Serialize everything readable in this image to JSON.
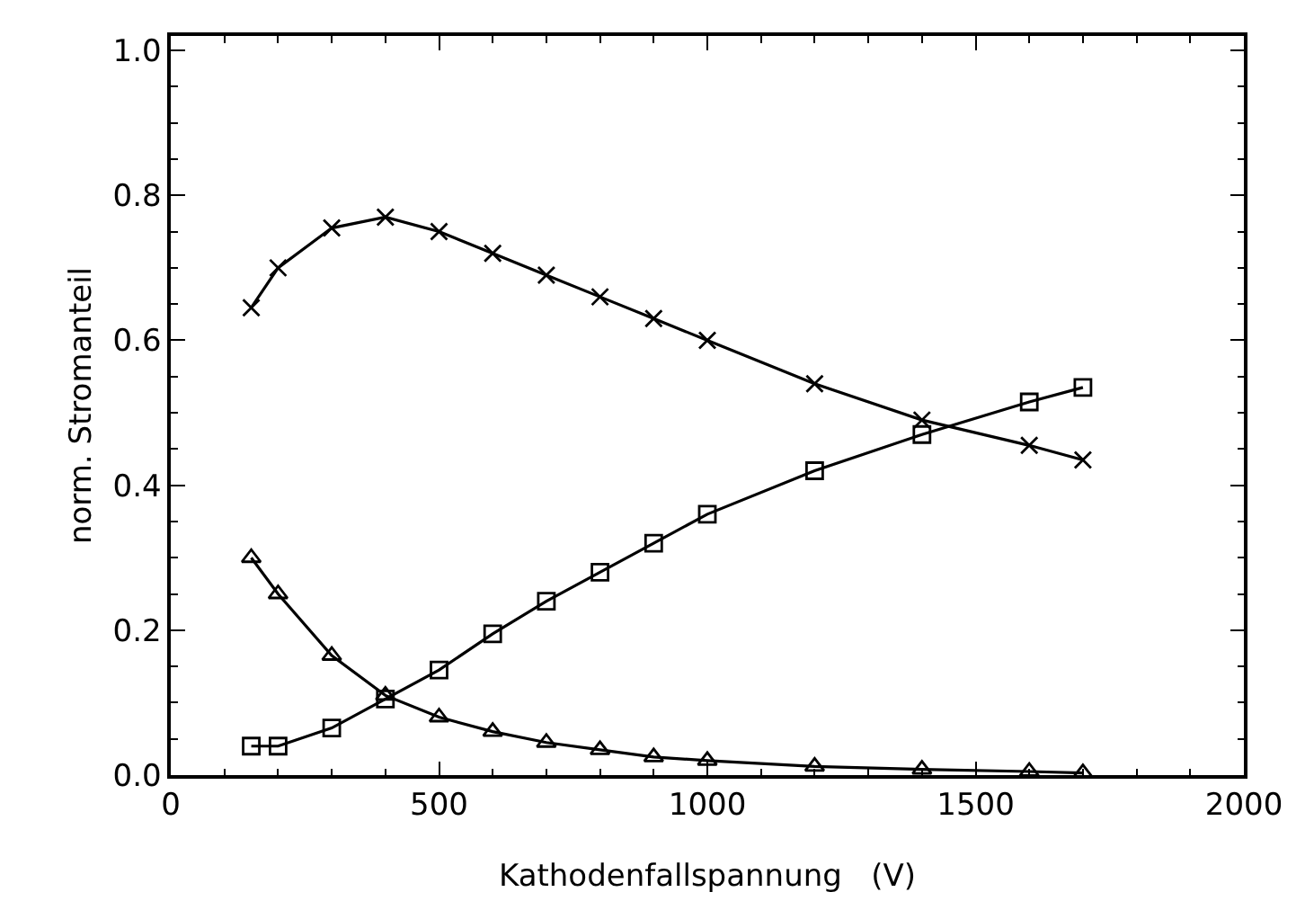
{
  "chart_data": {
    "type": "line",
    "xlabel": "Kathodenfallspannung   (V)",
    "ylabel": "norm. Stromanteil",
    "x": [
      150,
      200,
      300,
      400,
      500,
      600,
      700,
      800,
      900,
      1000,
      1200,
      1400,
      1600,
      1700
    ],
    "series": [
      {
        "color": "#000000",
        "marker": "cross",
        "values": [
          0.645,
          0.7,
          0.755,
          0.77,
          0.75,
          0.72,
          0.69,
          0.66,
          0.63,
          0.6,
          0.54,
          0.49,
          0.455,
          0.435
        ]
      },
      {
        "color": "#000000",
        "marker": "square",
        "values": [
          0.04,
          0.04,
          0.065,
          0.105,
          0.145,
          0.195,
          0.24,
          0.28,
          0.32,
          0.36,
          0.42,
          0.47,
          0.515,
          0.535
        ]
      },
      {
        "color": "#000000",
        "marker": "triangle",
        "values": [
          0.3,
          0.25,
          0.165,
          0.11,
          0.08,
          0.06,
          0.045,
          0.035,
          0.025,
          0.02,
          0.012,
          0.008,
          0.005,
          0.003
        ]
      }
    ],
    "xlim": [
      0,
      2000
    ],
    "xticks": [
      0,
      500,
      1000,
      1500,
      2000
    ],
    "ylim": [
      0,
      1.02
    ],
    "yticks": [
      {
        "value": 0,
        "label": "0.0"
      },
      {
        "value": 0.2,
        "label": "0.2"
      },
      {
        "value": 0.4,
        "label": "0.4"
      },
      {
        "value": 0.6,
        "label": "0.6"
      },
      {
        "value": 0.8,
        "label": "0.8"
      },
      {
        "value": 1,
        "label": "1.0"
      }
    ],
    "grid": false,
    "line_style": "solid"
  }
}
